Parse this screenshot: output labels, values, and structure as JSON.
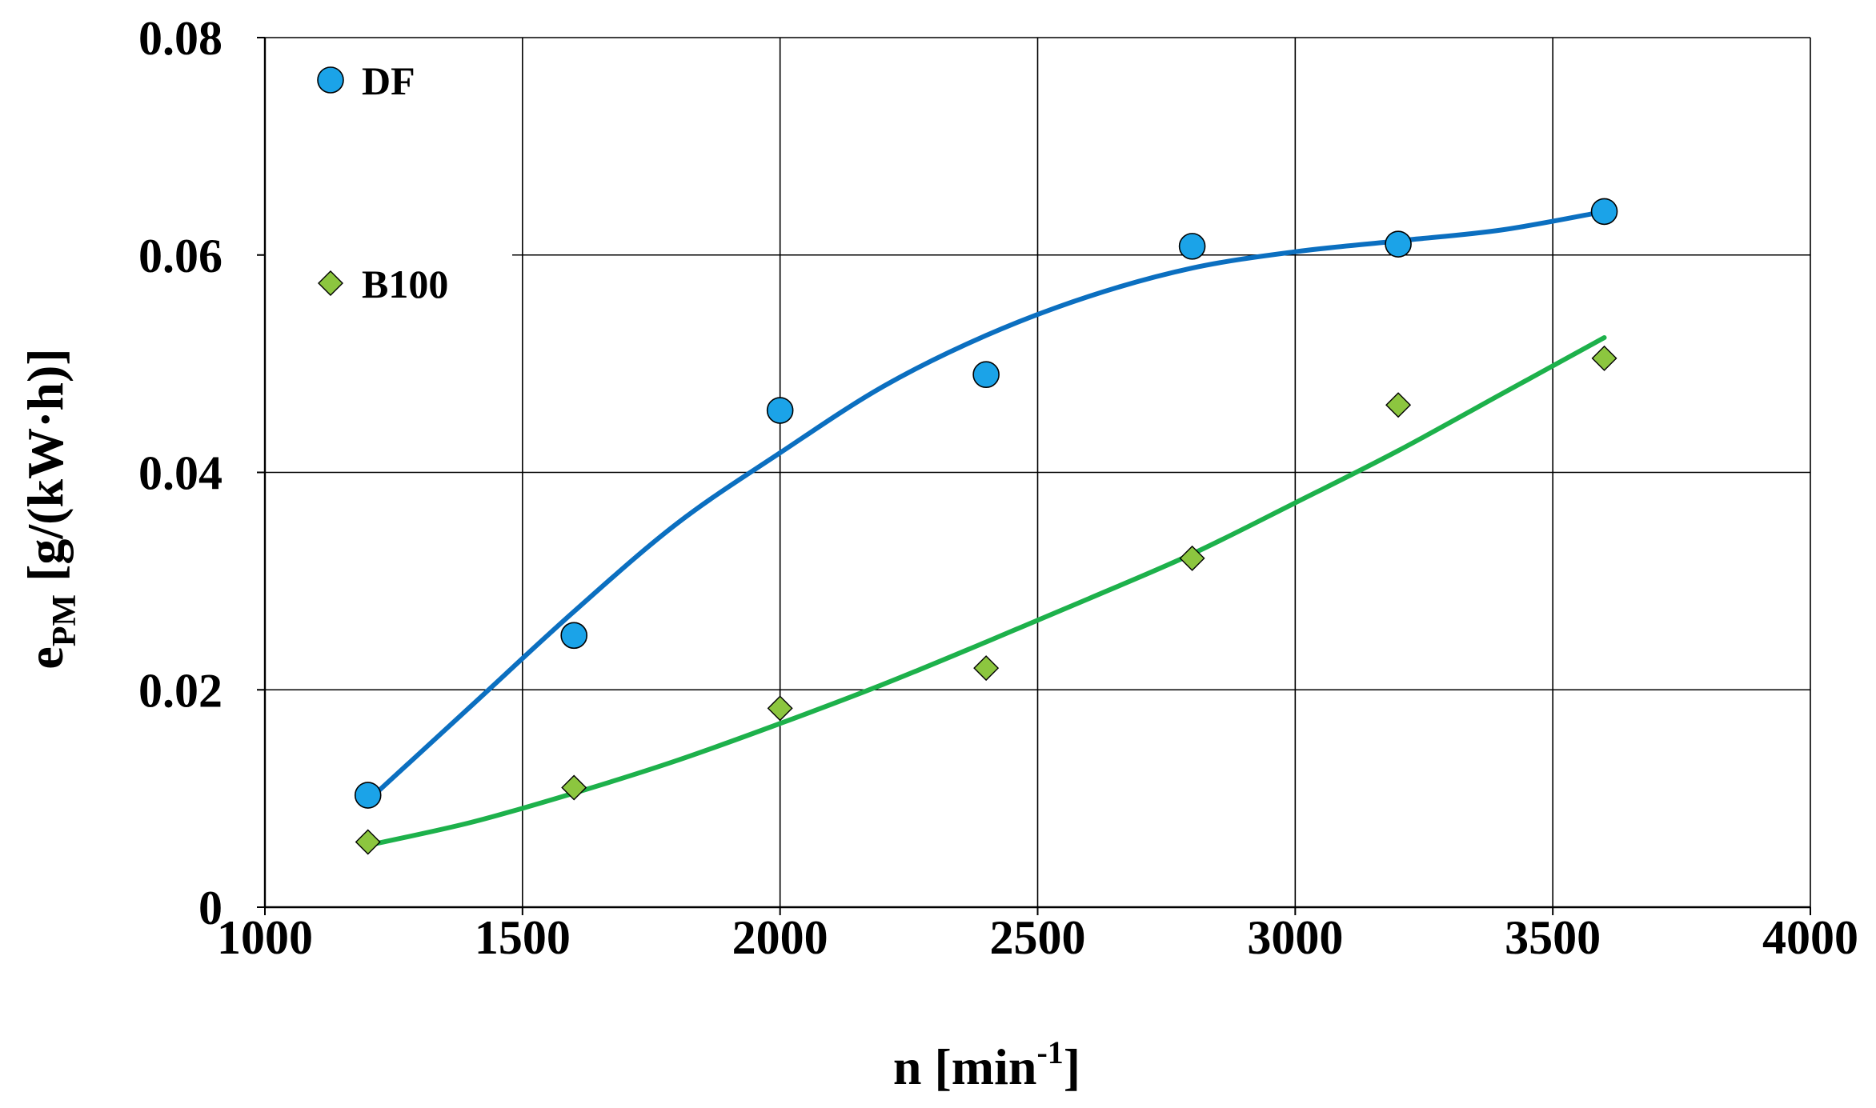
{
  "chart_data": {
    "type": "scatter",
    "title": "",
    "xlabel": {
      "base": "n [min",
      "sup": "-1",
      "tail": "]"
    },
    "ylabel": {
      "base": "e",
      "sub": "PM",
      "tail": " [g/(kW·h)]"
    },
    "xlim": [
      1000,
      4000
    ],
    "ylim": [
      0,
      0.08
    ],
    "xticks": [
      1000,
      1500,
      2000,
      2500,
      3000,
      3500,
      4000
    ],
    "xtick_labels": [
      "1000",
      "1500",
      "2000",
      "2500",
      "3000",
      "3500",
      "4000"
    ],
    "yticks": [
      0,
      0.02,
      0.04,
      0.06,
      0.08
    ],
    "ytick_labels": [
      "0",
      "0.02",
      "0.04",
      "0.06",
      "0.08"
    ],
    "grid": true,
    "legend_position": "top-left",
    "series": [
      {
        "name": "DF",
        "marker": "circle",
        "marker_color": "#1BA3E8",
        "line_color": "#0B6FC0",
        "x": [
          1200,
          1600,
          2000,
          2400,
          2800,
          3200,
          3600
        ],
        "values": [
          0.0103,
          0.025,
          0.0457,
          0.049,
          0.0608,
          0.061,
          0.064
        ],
        "trend": {
          "x": [
            1200,
            1400,
            1600,
            1800,
            2000,
            2200,
            2400,
            2600,
            2800,
            3000,
            3200,
            3400,
            3600
          ],
          "values": [
            0.0098,
            0.0185,
            0.0272,
            0.0353,
            0.0418,
            0.0479,
            0.0526,
            0.0562,
            0.0588,
            0.0603,
            0.0613,
            0.0623,
            0.064
          ]
        }
      },
      {
        "name": "B100",
        "marker": "diamond",
        "marker_color": "#8CC63F",
        "line_color": "#1DB14B",
        "x": [
          1200,
          1600,
          2000,
          2400,
          2800,
          3200,
          3600
        ],
        "values": [
          0.006,
          0.011,
          0.0183,
          0.022,
          0.0321,
          0.0462,
          0.0505
        ],
        "trend": {
          "x": [
            1200,
            1400,
            1600,
            1800,
            2000,
            2200,
            2400,
            2600,
            2800,
            3000,
            3200,
            3400,
            3600
          ],
          "values": [
            0.0057,
            0.0078,
            0.0105,
            0.0135,
            0.0169,
            0.0205,
            0.0244,
            0.0284,
            0.0325,
            0.0372,
            0.042,
            0.0472,
            0.0524
          ]
        }
      }
    ]
  }
}
